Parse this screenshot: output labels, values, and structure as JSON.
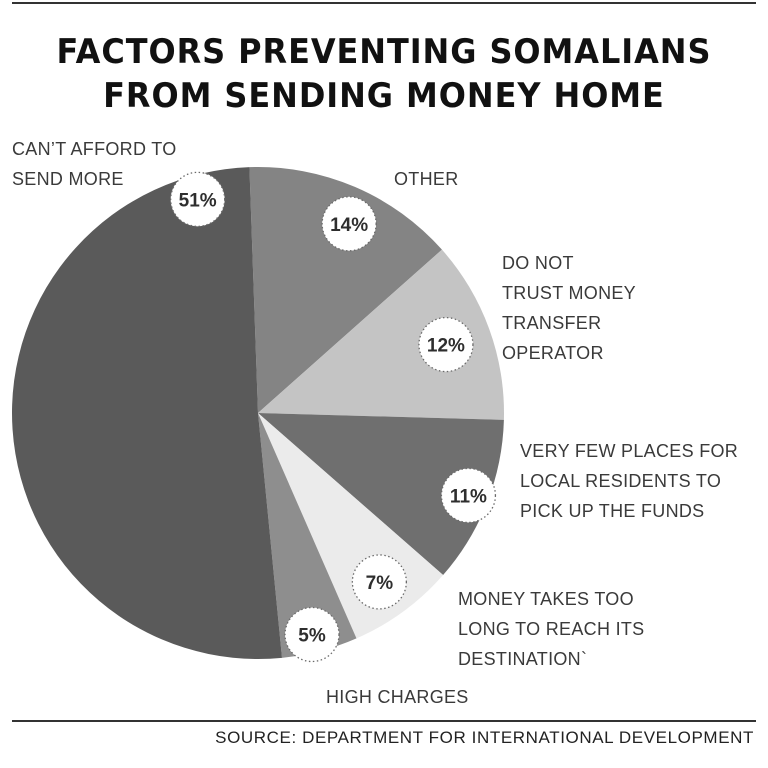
{
  "title_lines": [
    "FACTORS PREVENTING SOMALIANS",
    "FROM SENDING MONEY HOME"
  ],
  "source": "SOURCE: DEPARTMENT FOR INTERNATIONAL DEVELOPMENT",
  "chart_data": {
    "type": "pie",
    "title": "FACTORS PREVENTING SOMALIANS FROM SENDING MONEY HOME",
    "slices": [
      {
        "pct_label": "14%",
        "value": 14,
        "label_lines": [
          "OTHER"
        ],
        "color": "#848484"
      },
      {
        "pct_label": "12%",
        "value": 12,
        "label_lines": [
          "DO NOT",
          "TRUST MONEY",
          "TRANSFER",
          "OPERATOR"
        ],
        "color": "#c4c4c4"
      },
      {
        "pct_label": "11%",
        "value": 11,
        "label_lines": [
          "VERY FEW PLACES FOR",
          "LOCAL RESIDENTS TO",
          "PICK UP THE FUNDS"
        ],
        "color": "#6f6f6f"
      },
      {
        "pct_label": "7%",
        "value": 7,
        "label_lines": [
          "MONEY TAKES TOO",
          "LONG TO REACH ITS",
          "DESTINATION`"
        ],
        "color": "#ebebeb"
      },
      {
        "pct_label": "5%",
        "value": 5,
        "label_lines": [
          "HIGH CHARGES"
        ],
        "color": "#8e8e8e"
      },
      {
        "pct_label": "51%",
        "value": 51,
        "label_lines": [
          "CAN’T AFFORD TO",
          "SEND MORE"
        ],
        "color": "#5a5a5a"
      }
    ]
  }
}
